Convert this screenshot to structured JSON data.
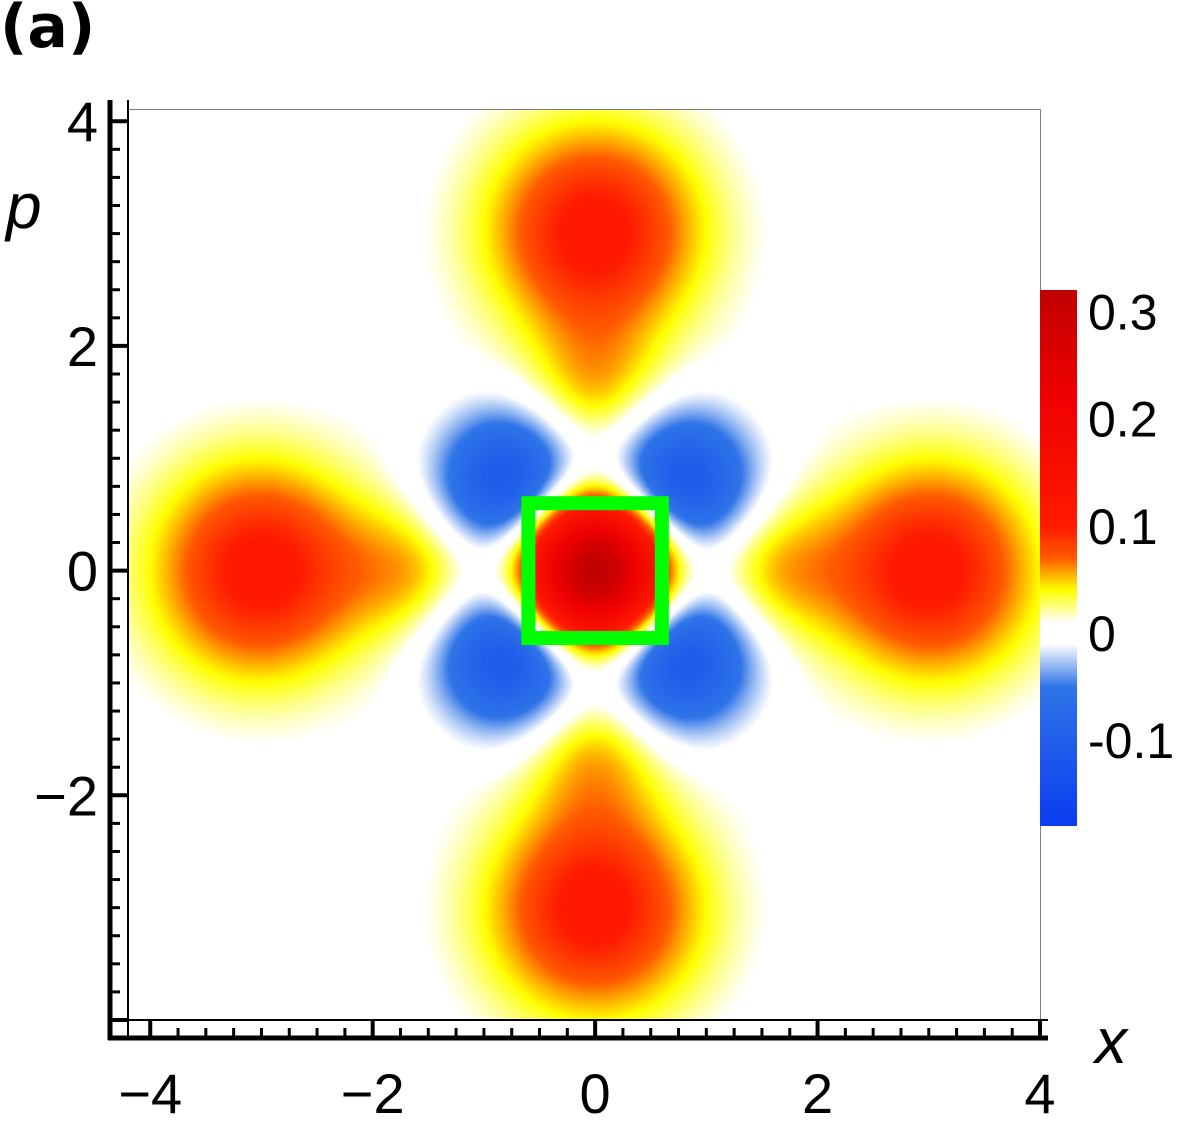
{
  "panel_label": "(a)",
  "chart_data": {
    "type": "heatmap",
    "title": "",
    "xlabel": "x",
    "ylabel": "p",
    "xlim": [
      -4.2,
      4
    ],
    "ylim": [
      -4,
      4.1
    ],
    "x_ticks": [
      -4,
      -2,
      0,
      2,
      4
    ],
    "x_tick_labels": [
      "−4",
      "−2",
      "0",
      "2",
      "4"
    ],
    "y_ticks": [
      -2,
      0,
      2,
      4
    ],
    "y_tick_labels": [
      "−2",
      "0",
      "2",
      "4"
    ],
    "grid": false,
    "description_of_field": "Wigner function of a four-component cat state: Gaussian peaks at (±3,0),(0,±3) and an interference lattice near the origin",
    "peaks": [
      {
        "x": 0,
        "y": 3,
        "amplitude": 0.11
      },
      {
        "x": 0,
        "y": -3,
        "amplitude": 0.11
      },
      {
        "x": 3,
        "y": 0,
        "amplitude": 0.11
      },
      {
        "x": -3,
        "y": 0,
        "amplitude": 0.11
      }
    ],
    "interference_center_max": 0.3,
    "colorbar": {
      "min": -0.18,
      "max": 0.32,
      "ticks": [
        0.3,
        0.2,
        0.1,
        0,
        -0.1
      ],
      "tick_labels": [
        "0.3",
        "0.2",
        "0.1",
        "0",
        "-0.1"
      ],
      "stops": [
        {
          "value": -0.18,
          "color": "#0a3cf0"
        },
        {
          "value": -0.05,
          "color": "#2f74e8"
        },
        {
          "value": -0.01,
          "color": "#ffffff"
        },
        {
          "value": 0.01,
          "color": "#ffffff"
        },
        {
          "value": 0.04,
          "color": "#ffff00"
        },
        {
          "value": 0.07,
          "color": "#ff5a00"
        },
        {
          "value": 0.1,
          "color": "#ff1a00"
        },
        {
          "value": 0.22,
          "color": "#f00000"
        },
        {
          "value": 0.32,
          "color": "#c00000"
        }
      ]
    },
    "highlight_box": {
      "x_min": -0.6,
      "x_max": 0.6,
      "y_min": -0.6,
      "y_max": 0.6,
      "color": "#00ff00"
    }
  }
}
